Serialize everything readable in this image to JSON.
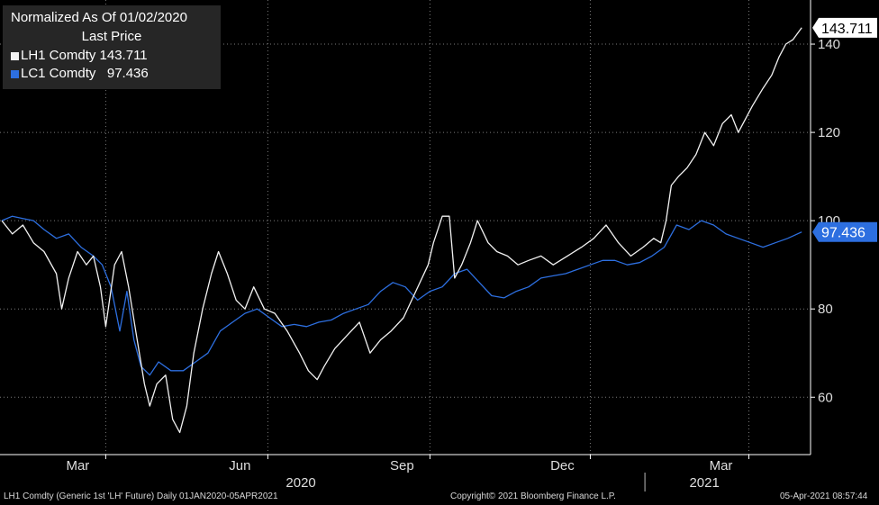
{
  "legend": {
    "line1": "Normalized As Of 01/02/2020",
    "line2": "Last Price"
  },
  "footer": {
    "left": "LH1 Comdty (Generic 1st 'LH' Future)  Daily 01JAN2020-05APR2021",
    "center": "Copyright© 2021 Bloomberg Finance L.P.",
    "right": "05-Apr-2021 08:57:44"
  },
  "colors": {
    "background": "#000000",
    "axis": "#ffffff",
    "grid": "#7a7a7a",
    "lh1": "#f2f2f2",
    "lc1": "#2d6fe0"
  },
  "chart_data": {
    "type": "line",
    "x_type": "date",
    "grid": true,
    "legend_position": "top-left",
    "ylim": [
      47,
      150
    ],
    "xlim": [
      "2020-01-01",
      "2021-04-05"
    ],
    "yticks": [
      60,
      80,
      100,
      120,
      140
    ],
    "month_ticks": [
      {
        "label": "Mar",
        "date": "2020-03-01"
      },
      {
        "label": "Jun",
        "date": "2020-06-01"
      },
      {
        "label": "Sep",
        "date": "2020-09-01"
      },
      {
        "label": "Dec",
        "date": "2020-12-01"
      },
      {
        "label": "Mar",
        "date": "2021-03-01"
      }
    ],
    "year_labels": [
      {
        "label": "2020",
        "date": "2020-07-01"
      },
      {
        "label": "2021",
        "date": "2021-02-15"
      }
    ],
    "year_divider": "2021-01-01",
    "series": [
      {
        "name": "LH1 Comdty",
        "legend_label": "LH1 Comdty 143.711",
        "last_value": 143.711,
        "last_label": "143.711",
        "points": [
          [
            "2020-01-02",
            100
          ],
          [
            "2020-01-08",
            97
          ],
          [
            "2020-01-14",
            99
          ],
          [
            "2020-01-20",
            95
          ],
          [
            "2020-01-26",
            93
          ],
          [
            "2020-02-02",
            88
          ],
          [
            "2020-02-05",
            80
          ],
          [
            "2020-02-09",
            87
          ],
          [
            "2020-02-14",
            93
          ],
          [
            "2020-02-19",
            90
          ],
          [
            "2020-02-23",
            92
          ],
          [
            "2020-02-27",
            85
          ],
          [
            "2020-03-01",
            76
          ],
          [
            "2020-03-06",
            90
          ],
          [
            "2020-03-10",
            93
          ],
          [
            "2020-03-14",
            85
          ],
          [
            "2020-03-18",
            75
          ],
          [
            "2020-03-23",
            63
          ],
          [
            "2020-03-26",
            58
          ],
          [
            "2020-03-30",
            63
          ],
          [
            "2020-04-04",
            65
          ],
          [
            "2020-04-08",
            55
          ],
          [
            "2020-04-12",
            52
          ],
          [
            "2020-04-16",
            58
          ],
          [
            "2020-04-20",
            70
          ],
          [
            "2020-04-25",
            80
          ],
          [
            "2020-04-30",
            88
          ],
          [
            "2020-05-04",
            93
          ],
          [
            "2020-05-09",
            88
          ],
          [
            "2020-05-14",
            82
          ],
          [
            "2020-05-19",
            80
          ],
          [
            "2020-05-24",
            85
          ],
          [
            "2020-05-30",
            80
          ],
          [
            "2020-06-05",
            79
          ],
          [
            "2020-06-12",
            75
          ],
          [
            "2020-06-19",
            70
          ],
          [
            "2020-06-24",
            66
          ],
          [
            "2020-06-29",
            64
          ],
          [
            "2020-07-03",
            67
          ],
          [
            "2020-07-09",
            71
          ],
          [
            "2020-07-16",
            74
          ],
          [
            "2020-07-23",
            77
          ],
          [
            "2020-07-29",
            70
          ],
          [
            "2020-08-04",
            73
          ],
          [
            "2020-08-10",
            75
          ],
          [
            "2020-08-17",
            78
          ],
          [
            "2020-08-24",
            84
          ],
          [
            "2020-08-31",
            90
          ],
          [
            "2020-09-03",
            95
          ],
          [
            "2020-09-08",
            101
          ],
          [
            "2020-09-12",
            101
          ],
          [
            "2020-09-15",
            87
          ],
          [
            "2020-09-19",
            90
          ],
          [
            "2020-09-24",
            95
          ],
          [
            "2020-09-28",
            100
          ],
          [
            "2020-10-04",
            95
          ],
          [
            "2020-10-09",
            93
          ],
          [
            "2020-10-15",
            92
          ],
          [
            "2020-10-21",
            90
          ],
          [
            "2020-10-27",
            91
          ],
          [
            "2020-11-03",
            92
          ],
          [
            "2020-11-10",
            90
          ],
          [
            "2020-11-18",
            92
          ],
          [
            "2020-11-26",
            94
          ],
          [
            "2020-12-03",
            96
          ],
          [
            "2020-12-10",
            99
          ],
          [
            "2020-12-17",
            95
          ],
          [
            "2020-12-24",
            92
          ],
          [
            "2020-12-31",
            94
          ],
          [
            "2021-01-06",
            96
          ],
          [
            "2021-01-10",
            95
          ],
          [
            "2021-01-13",
            100
          ],
          [
            "2021-01-16",
            108
          ],
          [
            "2021-01-20",
            110
          ],
          [
            "2021-01-25",
            112
          ],
          [
            "2021-01-30",
            115
          ],
          [
            "2021-02-04",
            120
          ],
          [
            "2021-02-09",
            117
          ],
          [
            "2021-02-14",
            122
          ],
          [
            "2021-02-19",
            124
          ],
          [
            "2021-02-23",
            120
          ],
          [
            "2021-02-27",
            123
          ],
          [
            "2021-03-03",
            126
          ],
          [
            "2021-03-09",
            130
          ],
          [
            "2021-03-14",
            133
          ],
          [
            "2021-03-18",
            137
          ],
          [
            "2021-03-22",
            140
          ],
          [
            "2021-03-26",
            141
          ],
          [
            "2021-03-31",
            143.711
          ]
        ]
      },
      {
        "name": "LC1 Comdty",
        "legend_label": "LC1 Comdty   97.436",
        "last_value": 97.436,
        "last_label": "97.436",
        "points": [
          [
            "2020-01-02",
            100
          ],
          [
            "2020-01-08",
            101
          ],
          [
            "2020-01-14",
            100.5
          ],
          [
            "2020-01-20",
            100
          ],
          [
            "2020-01-26",
            98
          ],
          [
            "2020-02-02",
            96
          ],
          [
            "2020-02-09",
            97
          ],
          [
            "2020-02-16",
            94
          ],
          [
            "2020-02-23",
            92
          ],
          [
            "2020-02-28",
            90
          ],
          [
            "2020-03-04",
            85
          ],
          [
            "2020-03-09",
            75
          ],
          [
            "2020-03-13",
            84
          ],
          [
            "2020-03-17",
            73
          ],
          [
            "2020-03-21",
            67
          ],
          [
            "2020-03-26",
            65
          ],
          [
            "2020-03-31",
            68
          ],
          [
            "2020-04-07",
            66
          ],
          [
            "2020-04-14",
            66
          ],
          [
            "2020-04-21",
            68
          ],
          [
            "2020-04-28",
            70
          ],
          [
            "2020-05-05",
            75
          ],
          [
            "2020-05-12",
            77
          ],
          [
            "2020-05-19",
            79
          ],
          [
            "2020-05-26",
            80
          ],
          [
            "2020-06-02",
            78
          ],
          [
            "2020-06-09",
            76
          ],
          [
            "2020-06-16",
            76.5
          ],
          [
            "2020-06-23",
            76
          ],
          [
            "2020-06-30",
            77
          ],
          [
            "2020-07-07",
            77.5
          ],
          [
            "2020-07-14",
            79
          ],
          [
            "2020-07-21",
            80
          ],
          [
            "2020-07-28",
            81
          ],
          [
            "2020-08-04",
            84
          ],
          [
            "2020-08-11",
            86
          ],
          [
            "2020-08-18",
            85
          ],
          [
            "2020-08-25",
            82
          ],
          [
            "2020-09-01",
            84
          ],
          [
            "2020-09-08",
            85
          ],
          [
            "2020-09-15",
            88
          ],
          [
            "2020-09-22",
            89
          ],
          [
            "2020-09-29",
            86
          ],
          [
            "2020-10-06",
            83
          ],
          [
            "2020-10-13",
            82.5
          ],
          [
            "2020-10-20",
            84
          ],
          [
            "2020-10-27",
            85
          ],
          [
            "2020-11-03",
            87
          ],
          [
            "2020-11-10",
            87.5
          ],
          [
            "2020-11-17",
            88
          ],
          [
            "2020-11-24",
            89
          ],
          [
            "2020-12-01",
            90
          ],
          [
            "2020-12-08",
            91
          ],
          [
            "2020-12-15",
            91
          ],
          [
            "2020-12-22",
            90
          ],
          [
            "2020-12-29",
            90.5
          ],
          [
            "2021-01-05",
            92
          ],
          [
            "2021-01-12",
            94
          ],
          [
            "2021-01-19",
            99
          ],
          [
            "2021-01-26",
            98
          ],
          [
            "2021-02-02",
            100
          ],
          [
            "2021-02-09",
            99
          ],
          [
            "2021-02-16",
            97
          ],
          [
            "2021-02-23",
            96
          ],
          [
            "2021-03-02",
            95
          ],
          [
            "2021-03-09",
            94
          ],
          [
            "2021-03-16",
            95
          ],
          [
            "2021-03-23",
            96
          ],
          [
            "2021-03-31",
            97.436
          ]
        ]
      }
    ]
  }
}
